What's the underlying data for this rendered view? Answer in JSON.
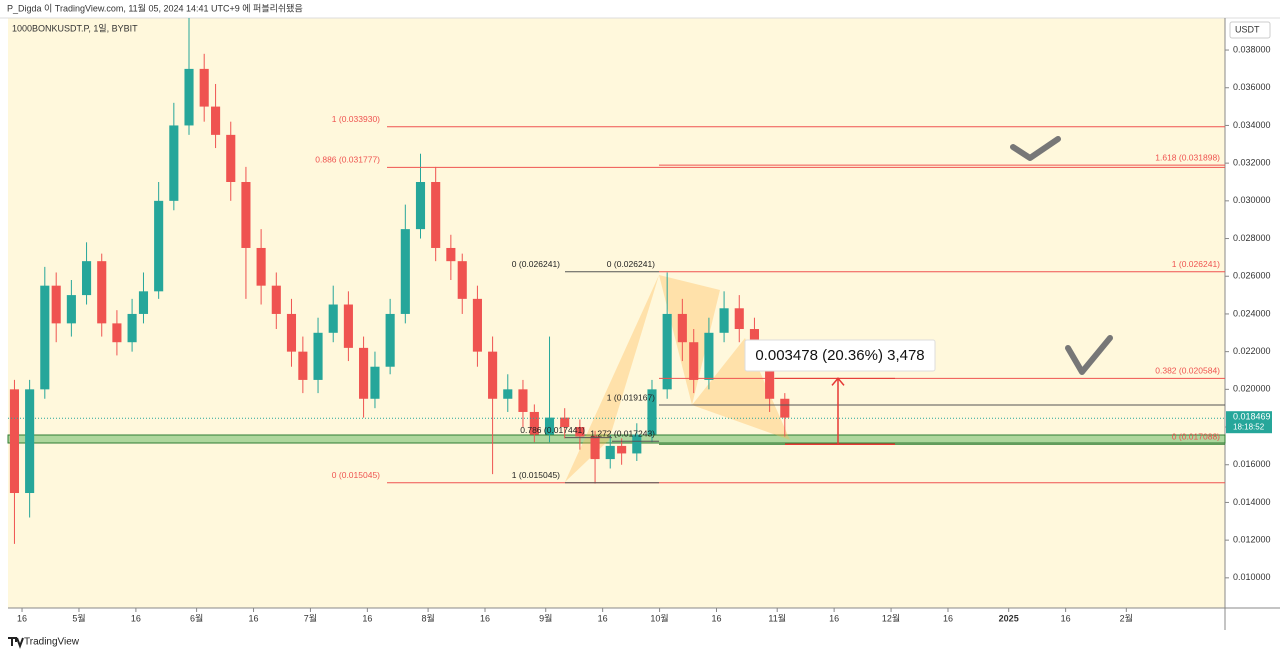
{
  "header": {
    "publisher": "P_Digda 이 TradingView.com, 11월 05, 2024 14:41 UTC+9 에 퍼블리쉬됐음",
    "brand": "TradingView"
  },
  "chart_data": {
    "type": "candlestick",
    "title": "1000BONKUSDT.P, 1일, BYBIT",
    "y_axis_label": "USDT",
    "up_color": "#26a69a",
    "down_color": "#ef5350",
    "x": [
      13,
      17,
      21,
      24,
      28,
      32,
      36,
      40,
      44,
      47,
      51,
      55,
      59,
      63,
      66,
      70,
      74,
      78,
      82,
      86,
      89,
      93,
      97,
      101,
      105,
      108,
      112,
      116,
      120,
      124,
      128,
      131,
      135,
      139,
      143,
      147,
      150,
      154,
      158,
      162,
      166,
      170,
      173,
      177,
      181,
      185,
      189,
      192,
      196,
      200,
      204,
      208,
      212,
      216
    ],
    "ohlc": [
      [
        0.02,
        0.0205,
        0.0118,
        0.0145
      ],
      [
        0.0145,
        0.0205,
        0.0132,
        0.02
      ],
      [
        0.02,
        0.0265,
        0.0195,
        0.0255
      ],
      [
        0.0255,
        0.0262,
        0.0225,
        0.0235
      ],
      [
        0.0235,
        0.0258,
        0.0228,
        0.025
      ],
      [
        0.025,
        0.0278,
        0.0245,
        0.0268
      ],
      [
        0.0268,
        0.0272,
        0.0228,
        0.0235
      ],
      [
        0.0235,
        0.0242,
        0.0218,
        0.0225
      ],
      [
        0.0225,
        0.0248,
        0.022,
        0.024
      ],
      [
        0.024,
        0.0262,
        0.0235,
        0.0252
      ],
      [
        0.0252,
        0.031,
        0.0248,
        0.03
      ],
      [
        0.03,
        0.0352,
        0.0295,
        0.034
      ],
      [
        0.034,
        0.0397,
        0.0335,
        0.037
      ],
      [
        0.037,
        0.0378,
        0.0342,
        0.035
      ],
      [
        0.035,
        0.0362,
        0.0328,
        0.0335
      ],
      [
        0.0335,
        0.0342,
        0.03,
        0.031
      ],
      [
        0.031,
        0.0318,
        0.0248,
        0.0275
      ],
      [
        0.0275,
        0.0285,
        0.0245,
        0.0255
      ],
      [
        0.0255,
        0.0262,
        0.0232,
        0.024
      ],
      [
        0.024,
        0.0248,
        0.0212,
        0.022
      ],
      [
        0.022,
        0.0228,
        0.0198,
        0.0205
      ],
      [
        0.0205,
        0.0238,
        0.0198,
        0.023
      ],
      [
        0.023,
        0.0255,
        0.0225,
        0.0245
      ],
      [
        0.0245,
        0.0252,
        0.0215,
        0.0222
      ],
      [
        0.0222,
        0.0228,
        0.0185,
        0.0195
      ],
      [
        0.0195,
        0.022,
        0.019,
        0.0212
      ],
      [
        0.0212,
        0.0248,
        0.0208,
        0.024
      ],
      [
        0.024,
        0.0298,
        0.0235,
        0.0285
      ],
      [
        0.0285,
        0.0325,
        0.028,
        0.031
      ],
      [
        0.031,
        0.0318,
        0.0268,
        0.0275
      ],
      [
        0.0275,
        0.0282,
        0.0258,
        0.0268
      ],
      [
        0.0268,
        0.0272,
        0.024,
        0.0248
      ],
      [
        0.0248,
        0.0255,
        0.0212,
        0.022
      ],
      [
        0.022,
        0.0228,
        0.0155,
        0.0195
      ],
      [
        0.0195,
        0.0208,
        0.0188,
        0.02
      ],
      [
        0.02,
        0.0205,
        0.018,
        0.0188
      ],
      [
        0.0188,
        0.0192,
        0.0172,
        0.0176
      ],
      [
        0.0176,
        0.0228,
        0.0172,
        0.0185
      ],
      [
        0.0185,
        0.019,
        0.0174,
        0.018
      ],
      [
        0.018,
        0.0184,
        0.0168,
        0.0175
      ],
      [
        0.0175,
        0.0178,
        0.015,
        0.0163
      ],
      [
        0.0163,
        0.0176,
        0.0158,
        0.017
      ],
      [
        0.017,
        0.0174,
        0.016,
        0.0166
      ],
      [
        0.0166,
        0.0182,
        0.0162,
        0.0176
      ],
      [
        0.0176,
        0.0205,
        0.0172,
        0.02
      ],
      [
        0.02,
        0.0262,
        0.0195,
        0.024
      ],
      [
        0.024,
        0.0248,
        0.0215,
        0.0225
      ],
      [
        0.0225,
        0.0232,
        0.0198,
        0.0205
      ],
      [
        0.0205,
        0.0238,
        0.02,
        0.023
      ],
      [
        0.023,
        0.0252,
        0.0225,
        0.0243
      ],
      [
        0.0243,
        0.025,
        0.0225,
        0.0232
      ],
      [
        0.0232,
        0.0238,
        0.021,
        0.0215
      ],
      [
        0.0215,
        0.022,
        0.0188,
        0.0195
      ],
      [
        0.0195,
        0.0198,
        0.0175,
        0.0185
      ]
    ],
    "xlim": [
      11.3,
      332
    ],
    "xticks": [
      {
        "value": 15,
        "label": "16"
      },
      {
        "value": 30,
        "label": "5월"
      },
      {
        "value": 45,
        "label": "16"
      },
      {
        "value": 61,
        "label": "6월"
      },
      {
        "value": 76,
        "label": "16"
      },
      {
        "value": 91,
        "label": "7월"
      },
      {
        "value": 106,
        "label": "16"
      },
      {
        "value": 122,
        "label": "8월"
      },
      {
        "value": 137,
        "label": "16"
      },
      {
        "value": 153,
        "label": "9월"
      },
      {
        "value": 168,
        "label": "16"
      },
      {
        "value": 183,
        "label": "10월"
      },
      {
        "value": 198,
        "label": "16"
      },
      {
        "value": 214,
        "label": "11월"
      },
      {
        "value": 229,
        "label": "16"
      },
      {
        "value": 244,
        "label": "12월"
      },
      {
        "value": 259,
        "label": "16"
      },
      {
        "value": 275,
        "label": "2025"
      },
      {
        "value": 290,
        "label": "16"
      },
      {
        "value": 306,
        "label": "2월"
      }
    ],
    "ylim": [
      0.0084,
      0.0397
    ],
    "yticks": [
      {
        "value": 0.01,
        "label": "0.010000"
      },
      {
        "value": 0.012,
        "label": "0.012000"
      },
      {
        "value": 0.014,
        "label": "0.014000"
      },
      {
        "value": 0.016,
        "label": "0.016000"
      },
      {
        "value": 0.018,
        "label": "0.018000"
      },
      {
        "value": 0.02,
        "label": "0.020000"
      },
      {
        "value": 0.022,
        "label": "0.022000"
      },
      {
        "value": 0.024,
        "label": "0.024000"
      },
      {
        "value": 0.026,
        "label": "0.026000"
      },
      {
        "value": 0.028,
        "label": "0.028000"
      },
      {
        "value": 0.03,
        "label": "0.030000"
      },
      {
        "value": 0.032,
        "label": "0.032000"
      },
      {
        "value": 0.034,
        "label": "0.034000"
      },
      {
        "value": 0.036,
        "label": "0.036000"
      },
      {
        "value": 0.038,
        "label": "0.038000"
      }
    ],
    "last_price": 0.018469,
    "countdown": "18:18:52",
    "annotations": [
      {
        "label": "1 (0.033930)",
        "price": 0.03393
      },
      {
        "label": "0.886 (0.031777)",
        "price": 0.031777
      },
      {
        "label": "1.618 (0.031898)",
        "price": 0.031898
      },
      {
        "label": "0 (0.026241)",
        "price": 0.026241
      },
      {
        "label": "0 (0.026241)",
        "price": 0.026241
      },
      {
        "label": "1 (0.026241)",
        "price": 0.026241
      },
      {
        "label": "0.382 (0.020584)",
        "price": 0.020584
      },
      {
        "label": "1 (0.019167)",
        "price": 0.019167
      },
      {
        "label": "0.786 (0.017441)",
        "price": 0.017441
      },
      {
        "label": "1.272 (0.017243)",
        "price": 0.017243
      },
      {
        "label": "0 (0.017088)",
        "price": 0.017088
      },
      {
        "label": "0 (0.015045)",
        "price": 0.015045
      },
      {
        "label": "1 (0.015045)",
        "price": 0.015045
      }
    ],
    "measure": "0.003478 (20.36%) 3,478"
  }
}
